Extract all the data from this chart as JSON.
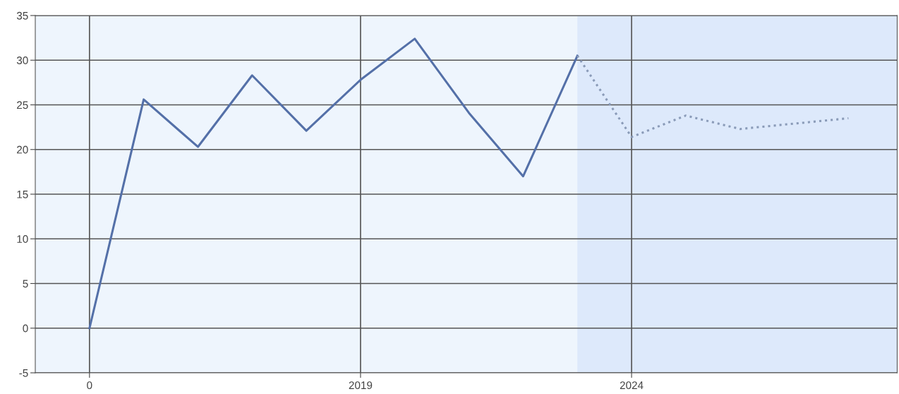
{
  "chart_data": {
    "type": "line",
    "categories": [
      "0",
      null,
      null,
      null,
      null,
      "2019",
      null,
      null,
      null,
      null,
      "2024",
      null,
      null,
      null,
      null
    ],
    "ylim": [
      -5,
      35
    ],
    "yticks": [
      -5,
      0,
      5,
      10,
      15,
      20,
      25,
      30,
      35
    ],
    "grid": true,
    "marker": "none",
    "series": [
      {
        "color": "#5470a8",
        "line_style": "solid",
        "values": [
          0,
          25.6,
          20.3,
          28.3,
          22.1,
          27.8,
          32.4,
          24.1,
          17.0,
          30.5,
          null,
          null,
          null,
          null,
          null
        ]
      },
      {
        "color": "#8a9bb8",
        "line_style": "dotted",
        "values": [
          null,
          null,
          null,
          null,
          null,
          null,
          null,
          null,
          null,
          30.5,
          21.4,
          23.8,
          22.3,
          22.9,
          23.5
        ]
      }
    ]
  }
}
